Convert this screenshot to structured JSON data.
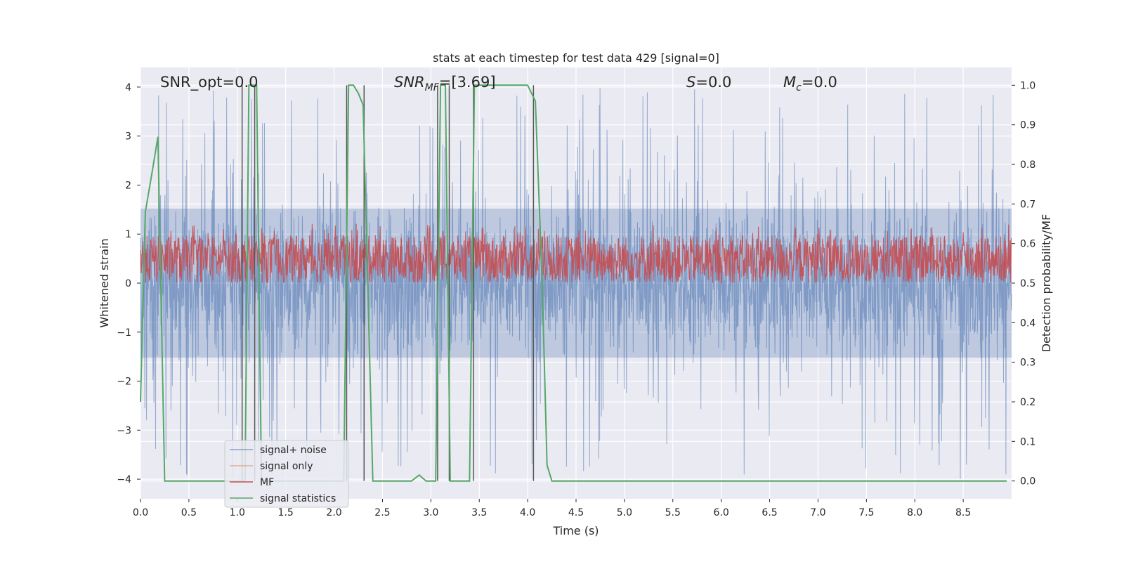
{
  "chart_data": {
    "type": "line",
    "title": "stats at each timestep for test data 429 [signal=0]",
    "xlabel": "Time (s)",
    "ylabel": "Whitened strain",
    "y2label": "Detection probability/MF",
    "xlim": [
      0.0,
      9.0
    ],
    "ylim": [
      -4.4,
      4.4
    ],
    "y2lim": [
      -0.045,
      1.045
    ],
    "x_ticks": [
      0.0,
      0.5,
      1.0,
      1.5,
      2.0,
      2.5,
      3.0,
      3.5,
      4.0,
      4.5,
      5.0,
      5.5,
      6.0,
      6.5,
      7.0,
      7.5,
      8.0,
      8.5
    ],
    "x_tick_labels": [
      "0.0",
      "0.5",
      "1.0",
      "1.5",
      "2.0",
      "2.5",
      "3.0",
      "3.5",
      "4.0",
      "4.5",
      "5.0",
      "5.5",
      "6.0",
      "6.5",
      "7.0",
      "7.5",
      "8.0",
      "8.5"
    ],
    "y_ticks": [
      4,
      3,
      2,
      1,
      0,
      -1,
      -2,
      -3,
      -4
    ],
    "y_tick_labels": [
      "4",
      "3",
      "2",
      "1",
      "0",
      "−1",
      "−2",
      "−3",
      "−4"
    ],
    "y2_ticks": [
      1.0,
      0.9,
      0.8,
      0.7,
      0.6,
      0.5,
      0.4,
      0.3,
      0.2,
      0.1,
      0.0
    ],
    "y2_tick_labels": [
      "1.0",
      "0.9",
      "0.8",
      "0.7",
      "0.6",
      "0.5",
      "0.4",
      "0.3",
      "0.2",
      "0.1",
      "0.0"
    ],
    "grid": true,
    "legend_position": "lower-left",
    "annotations": {
      "snr_opt": "SNR_opt=0.0",
      "snr_mf_base": "SNR",
      "snr_mf_sub": "MF",
      "snr_mf_value": "=[3.69]",
      "s_var": "S",
      "s_value": "=0.0",
      "mc_base": "M",
      "mc_sub": "c",
      "mc_value": "=0.0"
    },
    "series": [
      {
        "name": "signal+ noise",
        "color": "#4c72b0",
        "axis": "left",
        "kind": "noise",
        "amplitude_typical": 1.6,
        "amplitude_max": 4.0
      },
      {
        "name": "signal only",
        "color": "#dd8452",
        "axis": "left",
        "kind": "flat"
      },
      {
        "name": "MF",
        "color": "#c44e52",
        "axis": "right",
        "kind": "noise-band",
        "range": [
          0.5,
          0.62
        ]
      },
      {
        "name": "signal statistics",
        "color": "#55a868",
        "axis": "right",
        "x": [
          0.0,
          0.05,
          0.12,
          0.18,
          0.25,
          0.3,
          0.5,
          1.0,
          1.08,
          1.12,
          1.2,
          1.25,
          1.35,
          2.0,
          2.1,
          2.15,
          2.2,
          2.25,
          2.3,
          2.4,
          2.5,
          2.8,
          2.88,
          2.95,
          3.0,
          3.05,
          3.1,
          3.15,
          3.2,
          3.25,
          3.3,
          3.4,
          3.45,
          3.5,
          3.6,
          4.0,
          4.08,
          4.15,
          4.2,
          4.25,
          4.3,
          5.0,
          6.0,
          7.0,
          8.0,
          8.95
        ],
        "y": [
          0.2,
          0.68,
          0.78,
          0.87,
          0.0,
          0.0,
          0.0,
          0.0,
          0.0,
          1.0,
          1.0,
          0.0,
          0.0,
          0.0,
          0.0,
          1.0,
          1.0,
          0.98,
          0.95,
          0.0,
          0.0,
          0.0,
          0.015,
          0.0,
          0.0,
          0.0,
          1.0,
          1.0,
          0.0,
          0.0,
          0.0,
          0.0,
          1.0,
          1.0,
          1.0,
          1.0,
          0.96,
          0.5,
          0.04,
          0.0,
          0.0,
          0.0,
          0.0,
          0.0,
          0.0,
          0.0
        ]
      }
    ],
    "vertical_markers": {
      "color": "#555555",
      "axis": "right",
      "lines": [
        {
          "x": 1.05,
          "y_range": [
            0.0,
            1.0
          ]
        },
        {
          "x": 1.18,
          "y_range": [
            0.0,
            1.0
          ]
        },
        {
          "x": 2.13,
          "y_range": [
            0.0,
            1.0
          ]
        },
        {
          "x": 2.31,
          "y_range": [
            0.0,
            1.0
          ]
        },
        {
          "x": 3.07,
          "y_range": [
            0.0,
            1.0
          ]
        },
        {
          "x": 3.19,
          "y_range": [
            0.0,
            1.0
          ]
        },
        {
          "x": 3.44,
          "y_range": [
            0.0,
            1.0
          ]
        },
        {
          "x": 4.06,
          "y_range": [
            0.0,
            1.0
          ]
        }
      ]
    }
  }
}
